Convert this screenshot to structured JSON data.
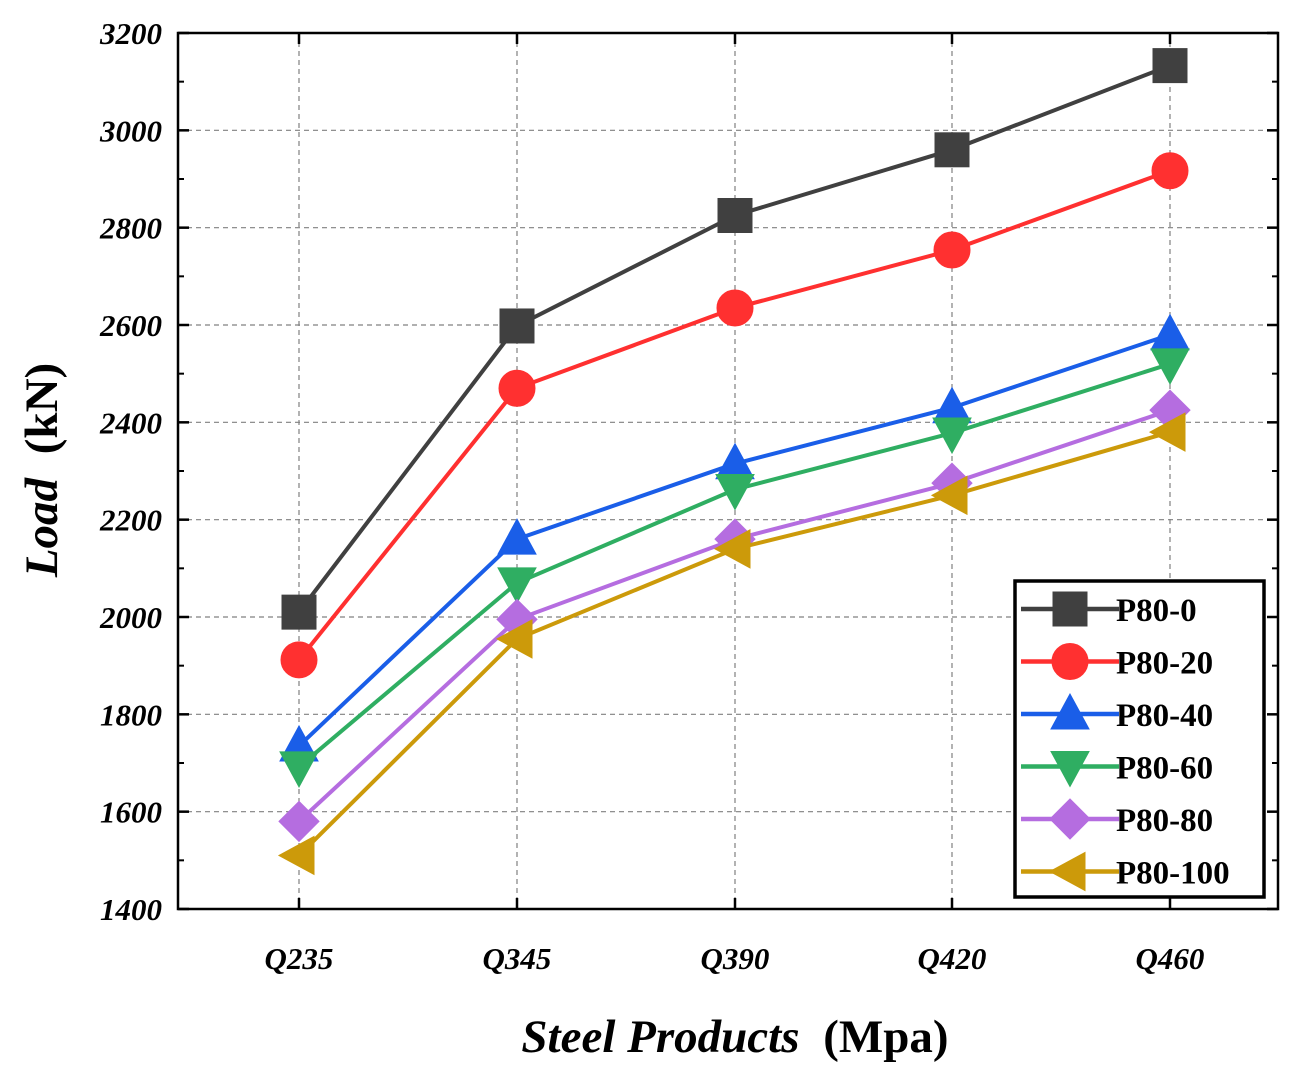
{
  "chart_data": {
    "type": "line",
    "title": "",
    "xlabel": {
      "italic": "Steel Products",
      "plain": "(Mpa)"
    },
    "ylabel": {
      "italic": "Load",
      "plain": "(kN)"
    },
    "categories": [
      "Q235",
      "Q345",
      "Q390",
      "Q420",
      "Q460"
    ],
    "ylim": [
      1400,
      3200
    ],
    "yticks": [
      1400,
      1600,
      1800,
      2000,
      2200,
      2400,
      2600,
      2800,
      3000,
      3200
    ],
    "grid": true,
    "legend_position": "bottom-right",
    "series": [
      {
        "name": "P80-0",
        "color": "#404040",
        "marker": "square",
        "values": [
          2010,
          2598,
          2825,
          2960,
          3133
        ]
      },
      {
        "name": "P80-20",
        "color": "#ff3030",
        "marker": "circle",
        "values": [
          1912,
          2470,
          2635,
          2754,
          2917
        ]
      },
      {
        "name": "P80-40",
        "color": "#1a5ee8",
        "marker": "triangle-up",
        "values": [
          1735,
          2160,
          2315,
          2430,
          2580
        ]
      },
      {
        "name": "P80-60",
        "color": "#2fae62",
        "marker": "triangle-down",
        "values": [
          1692,
          2070,
          2262,
          2378,
          2520
        ]
      },
      {
        "name": "P80-80",
        "color": "#b56de0",
        "marker": "diamond",
        "values": [
          1580,
          1995,
          2160,
          2275,
          2425
        ]
      },
      {
        "name": "P80-100",
        "color": "#cc9a0a",
        "marker": "triangle-left",
        "values": [
          1510,
          1955,
          2140,
          2250,
          2380
        ]
      }
    ]
  }
}
